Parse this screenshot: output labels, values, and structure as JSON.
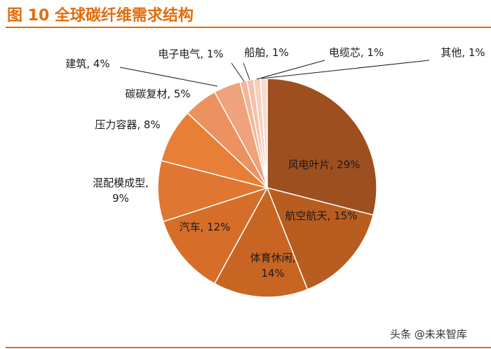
{
  "figure": {
    "title": "图 10 全球碳纤维需求结构"
  },
  "watermark": {
    "text": "头条 @未来智库"
  },
  "chart_data": {
    "type": "pie",
    "title": "图 10 全球碳纤维需求结构",
    "start": "12 o'clock, clockwise",
    "slices": [
      {
        "name": "风电叶片",
        "value": 29,
        "label_lines": [
          "风电叶片, 29%"
        ],
        "color": "#9e4f1f",
        "label_outside": false
      },
      {
        "name": "航空航天",
        "value": 15,
        "label_lines": [
          "航空航天, 15%"
        ],
        "color": "#b95c20",
        "label_outside": false
      },
      {
        "name": "体育休闲",
        "value": 14,
        "label_lines": [
          "体育休闲,",
          "14%"
        ],
        "color": "#c96523",
        "label_outside": false
      },
      {
        "name": "汽车",
        "value": 12,
        "label_lines": [
          "汽车, 12%"
        ],
        "color": "#d66e2a",
        "label_outside": false
      },
      {
        "name": "混配模成型",
        "value": 9,
        "label_lines": [
          "混配模成型,",
          "9%"
        ],
        "color": "#df7631",
        "label_outside": true
      },
      {
        "name": "压力容器",
        "value": 8,
        "label_lines": [
          "压力容器, 8%"
        ],
        "color": "#e87f37",
        "label_outside": true
      },
      {
        "name": "碳碳复材",
        "value": 5,
        "label_lines": [
          "碳碳复材, 5%"
        ],
        "color": "#ec9260",
        "label_outside": true
      },
      {
        "name": "建筑",
        "value": 4,
        "label_lines": [
          "建筑, 4%"
        ],
        "color": "#efa27b",
        "label_outside": true
      },
      {
        "name": "电子电气",
        "value": 1,
        "label_lines": [
          "电子电气, 1%"
        ],
        "color": "#f2b59a",
        "label_outside": true
      },
      {
        "name": "船舶",
        "value": 1,
        "label_lines": [
          "船舶, 1%"
        ],
        "color": "#f5c2ac",
        "label_outside": true
      },
      {
        "name": "电缆芯",
        "value": 1,
        "label_lines": [
          "电缆芯, 1%"
        ],
        "color": "#f7cfbd",
        "label_outside": true
      },
      {
        "name": "其他",
        "value": 1,
        "label_lines": [
          "其他, 1%"
        ],
        "color": "#f9dccd",
        "label_outside": true
      }
    ]
  }
}
